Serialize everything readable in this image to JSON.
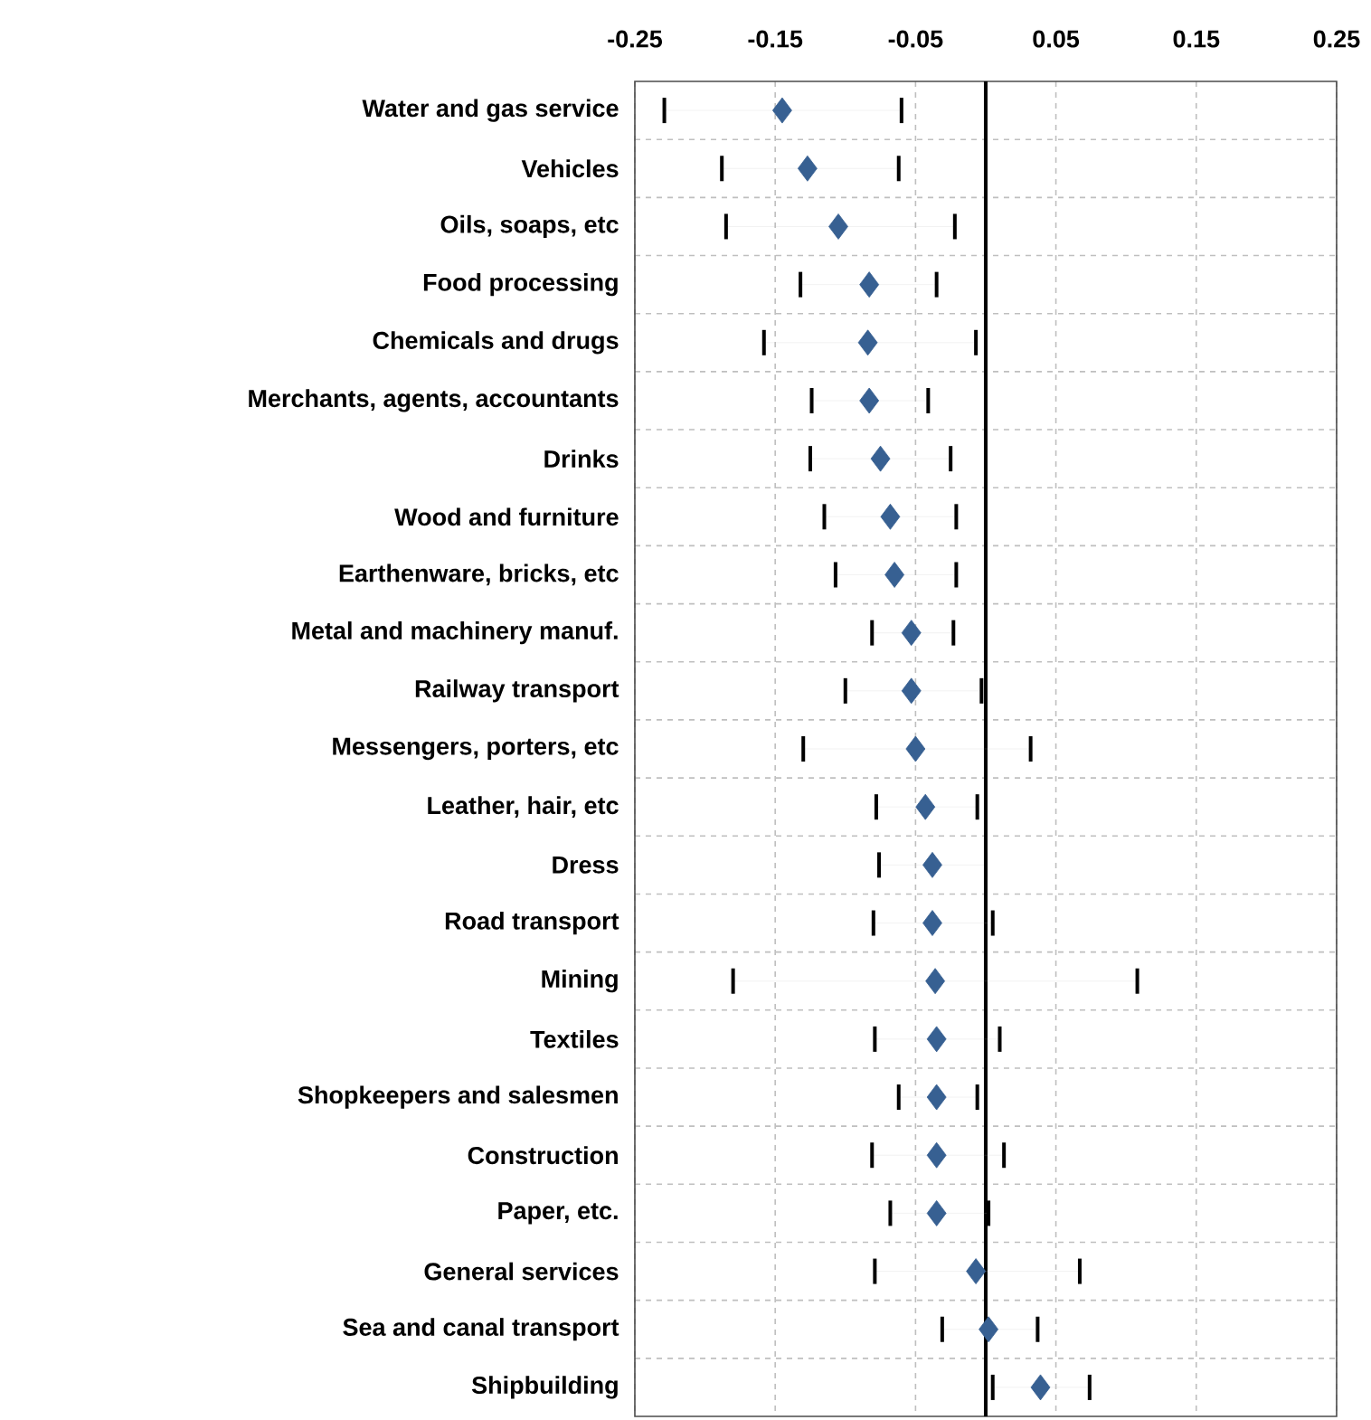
{
  "chart_data": {
    "type": "scatter",
    "orientation": "horizontal",
    "marker": "diamond",
    "color": "#376092",
    "grid": true,
    "categories": [
      "Water and gas service",
      "Vehicles",
      "Oils, soaps, etc",
      "Food processing",
      "Chemicals and drugs",
      "Merchants, agents, accountants",
      "Drinks",
      "Wood and furniture",
      "Earthenware, bricks, etc",
      "Metal and machinery manuf.",
      "Railway transport",
      "Messengers, porters, etc",
      "Leather, hair, etc",
      "Dress",
      "Road transport",
      "Mining",
      "Textiles",
      "Shopkeepers and salesmen",
      "Construction",
      "Paper, etc.",
      "General services",
      "Sea and canal transport",
      "Shipbuilding"
    ],
    "values": [
      -0.145,
      -0.127,
      -0.105,
      -0.083,
      -0.084,
      -0.083,
      -0.075,
      -0.068,
      -0.065,
      -0.053,
      -0.053,
      -0.05,
      -0.043,
      -0.038,
      -0.038,
      -0.036,
      -0.035,
      -0.035,
      -0.035,
      -0.035,
      -0.007,
      0.002,
      0.039
    ],
    "errors": [
      [
        -0.229,
        -0.06
      ],
      [
        -0.188,
        -0.062
      ],
      [
        -0.185,
        -0.022
      ],
      [
        -0.132,
        -0.035
      ],
      [
        -0.158,
        -0.007
      ],
      [
        -0.124,
        -0.041
      ],
      [
        -0.125,
        -0.025
      ],
      [
        -0.115,
        -0.021
      ],
      [
        -0.107,
        -0.021
      ],
      [
        -0.081,
        -0.023
      ],
      [
        -0.1,
        -0.003
      ],
      [
        -0.13,
        0.032
      ],
      [
        -0.078,
        -0.006
      ],
      [
        -0.076,
        0.0
      ],
      [
        -0.08,
        0.005
      ],
      [
        -0.18,
        0.108
      ],
      [
        -0.079,
        0.01
      ],
      [
        -0.062,
        -0.006
      ],
      [
        -0.081,
        0.013
      ],
      [
        -0.068,
        0.002
      ],
      [
        -0.079,
        0.067
      ],
      [
        -0.031,
        0.037
      ],
      [
        0.005,
        0.074
      ]
    ],
    "xlim": [
      -0.25,
      0.25
    ],
    "xticks": [
      -0.25,
      -0.15,
      -0.05,
      0.05,
      0.15,
      0.25
    ],
    "ref_lines": [
      {
        "axis": "x",
        "value": 0,
        "color": "#000000"
      }
    ]
  }
}
